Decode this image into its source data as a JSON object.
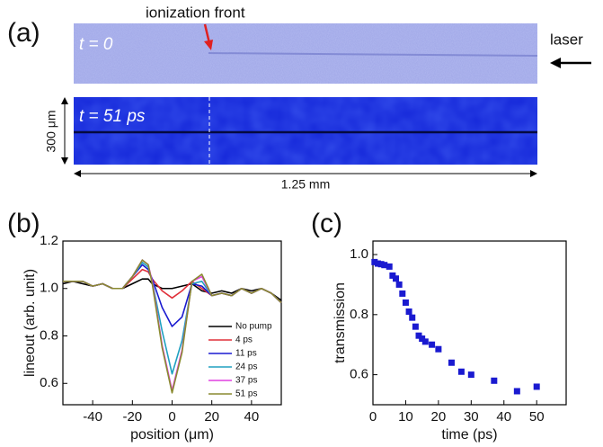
{
  "panel_a": {
    "label": "(a)",
    "annotation": "ionization front",
    "top_time": "t = 0",
    "laser": "laser",
    "bottom_time": "t = 51 ps",
    "height_scale": "300 μm",
    "width_scale": "1.25 mm"
  },
  "chart_data": [
    {
      "type": "line",
      "label": "(b)",
      "x_label": "position (μm)",
      "y_label": "lineout (arb. unit)",
      "x": [
        -55,
        -50,
        -45,
        -40,
        -35,
        -30,
        -25,
        -20,
        -15,
        -12,
        -10,
        -5,
        0,
        5,
        10,
        15,
        20,
        25,
        30,
        35,
        40,
        45,
        50,
        55
      ],
      "series": [
        {
          "name": "No pump",
          "color": "#000000",
          "values": [
            1.02,
            1.03,
            1.02,
            1.01,
            1.02,
            1.0,
            1.0,
            1.02,
            1.04,
            1.04,
            1.02,
            1.0,
            1.0,
            1.01,
            1.02,
            0.99,
            0.98,
            0.99,
            0.98,
            1.0,
            0.99,
            1.0,
            0.98,
            0.95
          ]
        },
        {
          "name": "4 ps",
          "color": "#e0303a",
          "values": [
            1.03,
            1.03,
            1.03,
            1.01,
            1.02,
            1.0,
            1.0,
            1.04,
            1.08,
            1.07,
            1.04,
            0.99,
            0.96,
            0.99,
            1.03,
            1.0,
            0.97,
            0.98,
            0.97,
            1.0,
            0.98,
            1.0,
            0.98,
            0.94
          ]
        },
        {
          "name": "11 ps",
          "color": "#1a1ad0",
          "values": [
            1.03,
            1.03,
            1.03,
            1.01,
            1.02,
            1.0,
            1.0,
            1.05,
            1.1,
            1.08,
            1.04,
            0.92,
            0.84,
            0.88,
            1.02,
            1.01,
            0.97,
            0.98,
            0.97,
            1.0,
            0.98,
            1.0,
            0.98,
            0.94
          ]
        },
        {
          "name": "24 ps",
          "color": "#20a0c0",
          "values": [
            1.03,
            1.03,
            1.03,
            1.01,
            1.02,
            1.0,
            1.0,
            1.05,
            1.11,
            1.09,
            1.03,
            0.82,
            0.64,
            0.78,
            1.02,
            1.03,
            0.97,
            0.98,
            0.97,
            1.0,
            0.98,
            1.0,
            0.98,
            0.94
          ]
        },
        {
          "name": "37 ps",
          "color": "#e040e0",
          "values": [
            1.03,
            1.03,
            1.03,
            1.01,
            1.02,
            1.0,
            1.0,
            1.05,
            1.12,
            1.1,
            1.03,
            0.76,
            0.57,
            0.74,
            1.03,
            1.05,
            0.97,
            0.98,
            0.97,
            1.0,
            0.98,
            1.0,
            0.98,
            0.94
          ]
        },
        {
          "name": "51 ps",
          "color": "#8a8a30",
          "values": [
            1.03,
            1.03,
            1.03,
            1.01,
            1.02,
            1.0,
            1.0,
            1.05,
            1.12,
            1.1,
            1.02,
            0.75,
            0.56,
            0.73,
            1.03,
            1.06,
            0.97,
            0.98,
            0.97,
            1.0,
            0.98,
            1.0,
            0.98,
            0.94
          ]
        }
      ],
      "xlim": [
        -55,
        55
      ],
      "xticks": [
        -40,
        -20,
        0,
        20,
        40
      ],
      "ylim": [
        0.51,
        1.2
      ],
      "yticks": [
        0.6,
        0.8,
        {
          "value": 1,
          "label": "1.0"
        },
        1.2
      ],
      "legend": "lower right"
    },
    {
      "type": "scatter",
      "label": "(c)",
      "x_label": "time (ps)",
      "y_label": "transmission",
      "x": [
        0.5,
        1.5,
        2.5,
        3.5,
        5,
        6,
        7,
        8,
        9,
        10,
        11,
        12,
        13,
        14,
        15,
        16,
        18,
        20,
        24,
        27,
        30,
        37,
        44,
        50
      ],
      "series": [
        {
          "color": "#1a1ad0",
          "values": [
            0.975,
            0.97,
            0.968,
            0.965,
            0.96,
            0.93,
            0.92,
            0.9,
            0.87,
            0.84,
            0.81,
            0.79,
            0.76,
            0.73,
            0.72,
            0.71,
            0.7,
            0.685,
            0.64,
            0.61,
            0.6,
            0.58,
            0.545,
            0.56
          ]
        }
      ],
      "xlim": [
        0,
        59
      ],
      "xticks": [
        0,
        10,
        20,
        30,
        40,
        50
      ],
      "ylim": [
        0.5,
        1.045
      ],
      "yticks": [
        0.6,
        0.8,
        {
          "value": 1,
          "label": "1.0"
        }
      ]
    }
  ]
}
